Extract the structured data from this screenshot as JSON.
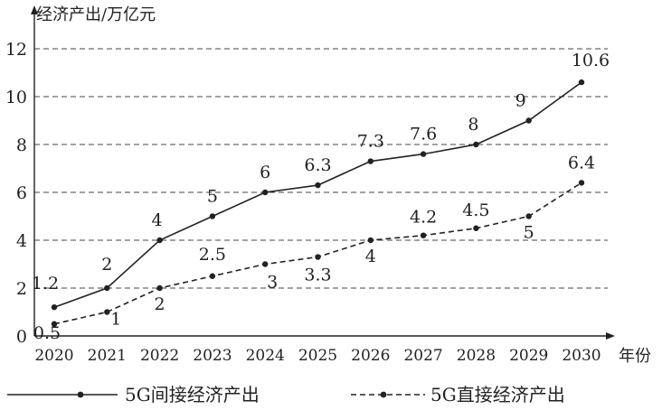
{
  "chart_data": {
    "type": "line",
    "ylabel": "经济产出/万亿元",
    "xlabel": "年份",
    "x": [
      "2020",
      "2021",
      "2022",
      "2023",
      "2024",
      "2025",
      "2026",
      "2027",
      "2028",
      "2029",
      "2030"
    ],
    "ylim": [
      0,
      12
    ],
    "yticks": [
      0,
      2,
      4,
      6,
      8,
      10,
      12
    ],
    "grid": "horizontal-dashed",
    "legend": "bottom",
    "series": [
      {
        "name": "5G间接经济产出",
        "style": "solid",
        "values": [
          1.2,
          2,
          4,
          5,
          6,
          6.3,
          7.3,
          7.6,
          8,
          9,
          10.6
        ],
        "labels": [
          "1.2",
          "2",
          "4",
          "5",
          "6",
          "6.3",
          "7.3",
          "7.6",
          "8",
          "9",
          "10.6"
        ]
      },
      {
        "name": "5G直接经济产出",
        "style": "dashed",
        "values": [
          0.5,
          1,
          2,
          2.5,
          3,
          3.3,
          4,
          4.2,
          4.5,
          5,
          6.4
        ],
        "labels": [
          "0.5",
          "1",
          "2",
          "2.5",
          "3",
          "3.3",
          "4",
          "4.2",
          "4.5",
          "5",
          "6.4"
        ]
      }
    ],
    "colors": {
      "line": "#222222",
      "grid": "#444444"
    }
  }
}
